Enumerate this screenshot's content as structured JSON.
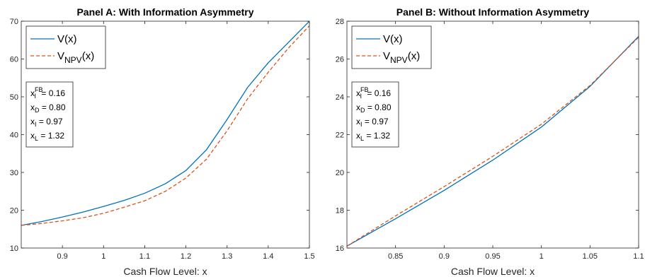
{
  "chart_data": [
    {
      "type": "line",
      "title": "Panel A: With Information Asymmetry",
      "xlabel": "Cash Flow Level: x",
      "ylabel": "",
      "xlim": [
        0.8,
        1.5
      ],
      "ylim": [
        10,
        70
      ],
      "xticks": [
        0.9,
        1,
        1.1,
        1.2,
        1.3,
        1.4,
        1.5
      ],
      "yticks": [
        10,
        20,
        30,
        40,
        50,
        60,
        70
      ],
      "xtick_labels": [
        "0.9",
        "1",
        "1.1",
        "1.2",
        "1.3",
        "1.4",
        "1.5"
      ],
      "ytick_labels": [
        "10",
        "20",
        "30",
        "40",
        "50",
        "60",
        "70"
      ],
      "grid": false,
      "legend_position": "top-left",
      "series": [
        {
          "name": "V(x)",
          "color": "#0072BD",
          "dash": "solid",
          "x": [
            0.8,
            0.85,
            0.9,
            0.95,
            1.0,
            1.05,
            1.1,
            1.15,
            1.2,
            1.25,
            1.3,
            1.35,
            1.4,
            1.45,
            1.5
          ],
          "y": [
            16.0,
            17.0,
            18.2,
            19.5,
            21.0,
            22.6,
            24.5,
            27.0,
            30.5,
            36.0,
            44.0,
            52.5,
            59.0,
            64.5,
            70.0
          ]
        },
        {
          "name": "V_NPV(x)",
          "color": "#D95319",
          "dash": "dashed",
          "x": [
            0.8,
            0.85,
            0.9,
            0.95,
            1.0,
            1.05,
            1.1,
            1.15,
            1.2,
            1.25,
            1.3,
            1.35,
            1.4,
            1.45,
            1.5
          ],
          "y": [
            16.0,
            16.5,
            17.2,
            18.0,
            19.2,
            20.8,
            22.5,
            25.0,
            28.5,
            33.5,
            41.0,
            49.5,
            56.5,
            63.0,
            68.8
          ]
        }
      ],
      "info_box": [
        {
          "base": "x",
          "sub": "I",
          "sup": "FB",
          "value": "= 0.16"
        },
        {
          "base": "x",
          "sub": "D",
          "sup": "",
          "value": "= 0.80"
        },
        {
          "base": "x",
          "sub": "I",
          "sup": "",
          "value": "= 0.97"
        },
        {
          "base": "x",
          "sub": "L",
          "sup": "",
          "value": "= 1.32"
        }
      ]
    },
    {
      "type": "line",
      "title": "Panel B: Without Information Asymmetry",
      "xlabel": "Cash Flow Level: x",
      "ylabel": "",
      "xlim": [
        0.8,
        1.1
      ],
      "ylim": [
        16,
        28
      ],
      "xticks": [
        0.85,
        0.9,
        0.95,
        1.0,
        1.05,
        1.1
      ],
      "yticks": [
        16,
        18,
        20,
        22,
        24,
        26,
        28
      ],
      "xtick_labels": [
        "0.85",
        "0.9",
        "0.95",
        "1",
        "1.05",
        "1.1"
      ],
      "ytick_labels": [
        "16",
        "18",
        "20",
        "22",
        "24",
        "26",
        "28"
      ],
      "grid": false,
      "legend_position": "top-left",
      "series": [
        {
          "name": "V(x)",
          "color": "#0072BD",
          "dash": "solid",
          "x": [
            0.8,
            0.85,
            0.9,
            0.95,
            1.0,
            1.05,
            1.1
          ],
          "y": [
            16.1,
            17.55,
            19.05,
            20.65,
            22.4,
            24.55,
            27.2
          ]
        },
        {
          "name": "V_NPV(x)",
          "color": "#D95319",
          "dash": "dashed",
          "x": [
            0.8,
            0.85,
            0.9,
            0.95,
            1.0,
            1.05,
            1.1
          ],
          "y": [
            16.1,
            17.7,
            19.25,
            20.85,
            22.55,
            24.6,
            27.15
          ]
        }
      ],
      "info_box": [
        {
          "base": "x",
          "sub": "I",
          "sup": "FB",
          "value": "= 0.16"
        },
        {
          "base": "x",
          "sub": "D",
          "sup": "",
          "value": "= 0.80"
        },
        {
          "base": "x",
          "sub": "I",
          "sup": "",
          "value": "= 0.97"
        },
        {
          "base": "x",
          "sub": "L",
          "sup": "",
          "value": "= 1.32"
        }
      ]
    }
  ]
}
